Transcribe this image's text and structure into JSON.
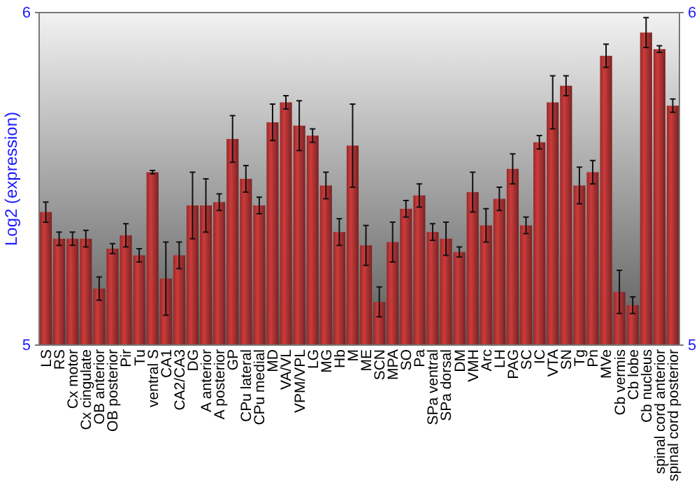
{
  "chart_data": {
    "type": "bar",
    "ylabel": "Log2 (expression)",
    "categories": [
      "LS",
      "RS",
      "Cx motor",
      "Cx cingulate",
      "OB anterior",
      "OB posterior",
      "Pir",
      "Tu",
      "ventral S",
      "CA1",
      "CA2/CA3",
      "DG",
      "A anterior",
      "A posterior",
      "GP",
      "CPu lateral",
      "CPu medial",
      "MD",
      "VA/VL",
      "VPM/VPL",
      "LG",
      "MG",
      "Hb",
      "M",
      "ME",
      "SCN",
      "MPA",
      "SO",
      "Pa",
      "SPa ventral",
      "SPa dorsal",
      "DM",
      "VMH",
      "Arc",
      "LH",
      "PAG",
      "SC",
      "IC",
      "VTA",
      "SN",
      "Tg",
      "Pn",
      "MVe",
      "Cb vermis",
      "Cb lobe",
      "Cb nucleus",
      "spinal cord anterior",
      "spinal cord posterior"
    ],
    "values": [
      5.4,
      5.32,
      5.32,
      5.32,
      5.17,
      5.29,
      5.33,
      5.27,
      5.52,
      5.2,
      5.27,
      5.42,
      5.42,
      5.43,
      5.62,
      5.5,
      5.42,
      5.67,
      5.73,
      5.66,
      5.63,
      5.48,
      5.34,
      5.6,
      5.3,
      5.13,
      5.31,
      5.41,
      5.45,
      5.34,
      5.32,
      5.28,
      5.46,
      5.36,
      5.44,
      5.53,
      5.36,
      5.61,
      5.73,
      5.78,
      5.48,
      5.52,
      5.87,
      5.16,
      5.12,
      5.94,
      5.89,
      5.72
    ],
    "errors": [
      0.03,
      0.02,
      0.02,
      0.025,
      0.035,
      0.015,
      0.035,
      0.02,
      0.005,
      0.11,
      0.04,
      0.1,
      0.08,
      0.025,
      0.07,
      0.04,
      0.025,
      0.055,
      0.02,
      0.075,
      0.02,
      0.04,
      0.04,
      0.125,
      0.06,
      0.045,
      0.06,
      0.025,
      0.035,
      0.025,
      0.05,
      0.015,
      0.06,
      0.05,
      0.035,
      0.045,
      0.025,
      0.02,
      0.08,
      0.03,
      0.055,
      0.035,
      0.035,
      0.065,
      0.025,
      0.045,
      0.01,
      0.02
    ],
    "color": "#b83535",
    "ylim": [
      5,
      6
    ],
    "yticks": [
      5,
      6
    ],
    "y2lim": [
      5,
      6
    ],
    "y2ticks": [
      5,
      6
    ]
  }
}
